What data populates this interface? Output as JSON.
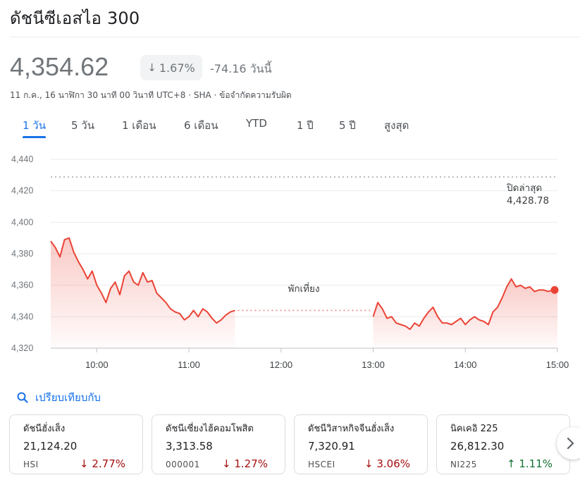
{
  "header": {
    "title": "ดัชนีซีเอสไอ 300"
  },
  "quote": {
    "price": "4,354.62",
    "change_pct": "1.67%",
    "change_pct_arrow": "↓",
    "change_abs": "-74.16 วันนี้",
    "meta": "11 ก.ค., 16 นาฬิกา 30 นาที 00 วินาที UTC+8 · SHA · ข้อจำกัดความรับผิด"
  },
  "tabs": [
    {
      "label": "1 วัน",
      "active": true
    },
    {
      "label": "5 วัน"
    },
    {
      "label": "1 เดือน"
    },
    {
      "label": "6 เดือน"
    },
    {
      "label": "YTD"
    },
    {
      "label": "1 ปี"
    },
    {
      "label": "5 ปี"
    },
    {
      "label": "สูงสุด"
    }
  ],
  "chart_data": {
    "type": "area",
    "y_ticks": [
      "4,440",
      "4,420",
      "4,400",
      "4,380",
      "4,360",
      "4,340",
      "4,320"
    ],
    "x_ticks": [
      "10:00",
      "11:00",
      "12:00",
      "13:00",
      "14:00",
      "15:00"
    ],
    "ylim": [
      4320,
      4440
    ],
    "previous_close_label": "ปิดล่าสุด",
    "previous_close_value": "4,428.78",
    "previous_close": 4428.78,
    "lunch_break_label": "พักเที่ยง",
    "last_value": 4357,
    "line_color": "#ea4335",
    "series": [
      {
        "segment": "morning",
        "x": [
          "9:30",
          "9:33",
          "9:36",
          "9:39",
          "9:42",
          "9:45",
          "9:48",
          "9:51",
          "9:54",
          "9:57",
          "10:00",
          "10:03",
          "10:06",
          "10:09",
          "10:12",
          "10:15",
          "10:18",
          "10:21",
          "10:24",
          "10:27",
          "10:30",
          "10:33",
          "10:36",
          "10:39",
          "10:42",
          "10:45",
          "10:48",
          "10:51",
          "10:54",
          "10:57",
          "11:00",
          "11:03",
          "11:06",
          "11:09",
          "11:12",
          "11:15",
          "11:18",
          "11:21",
          "11:24",
          "11:27",
          "11:30"
        ],
        "y": [
          4388,
          4384,
          4378,
          4389,
          4390,
          4381,
          4375,
          4370,
          4364,
          4369,
          4360,
          4355,
          4349,
          4358,
          4362,
          4354,
          4366,
          4369,
          4362,
          4360,
          4368,
          4362,
          4363,
          4355,
          4352,
          4349,
          4345,
          4343,
          4342,
          4338,
          4340,
          4344,
          4340,
          4345,
          4343,
          4339,
          4336,
          4338,
          4341,
          4343,
          4344
        ]
      },
      {
        "segment": "afternoon",
        "x": [
          "13:00",
          "13:03",
          "13:06",
          "13:09",
          "13:12",
          "13:15",
          "13:18",
          "13:21",
          "13:24",
          "13:27",
          "13:30",
          "13:33",
          "13:36",
          "13:39",
          "13:42",
          "13:45",
          "13:48",
          "13:51",
          "13:54",
          "13:57",
          "14:00",
          "14:03",
          "14:06",
          "14:09",
          "14:12",
          "14:15",
          "14:18",
          "14:21",
          "14:24",
          "14:27",
          "14:30",
          "14:33",
          "14:36",
          "14:39",
          "14:42",
          "14:45",
          "14:48",
          "14:51",
          "14:54",
          "14:57",
          "15:00"
        ],
        "y": [
          4340,
          4349,
          4345,
          4339,
          4340,
          4336,
          4335,
          4334,
          4332,
          4336,
          4334,
          4339,
          4343,
          4346,
          4340,
          4336,
          4336,
          4335,
          4337,
          4339,
          4335,
          4338,
          4340,
          4338,
          4337,
          4335,
          4343,
          4346,
          4352,
          4359,
          4364,
          4359,
          4360,
          4358,
          4359,
          4356,
          4357,
          4357,
          4356,
          4357,
          4357
        ]
      }
    ]
  },
  "compare": {
    "label": "เปรียบเทียบกับ"
  },
  "cards": [
    {
      "name": "ดัชนีฮั่งเส็ง",
      "value": "21,124.20",
      "symbol": "HSI",
      "pct": "2.77%",
      "direction": "down"
    },
    {
      "name": "ดัชนีเซี่ยงไฮ้คอมโพสิต",
      "value": "3,313.58",
      "symbol": "000001",
      "pct": "1.27%",
      "direction": "down"
    },
    {
      "name": "ดัชนีวิสาหกิจจีนฮั่งเส็ง",
      "value": "7,320.91",
      "symbol": "HSCEI",
      "pct": "3.06%",
      "direction": "down"
    },
    {
      "name": "นิคเคอิ 225",
      "value": "26,812.30",
      "symbol": "NI225",
      "pct": "1.11%",
      "direction": "up"
    }
  ],
  "arrows": {
    "down": "↓",
    "up": "↑"
  },
  "icons": {
    "compare": "search-icon",
    "next": "chevron-right-icon"
  }
}
